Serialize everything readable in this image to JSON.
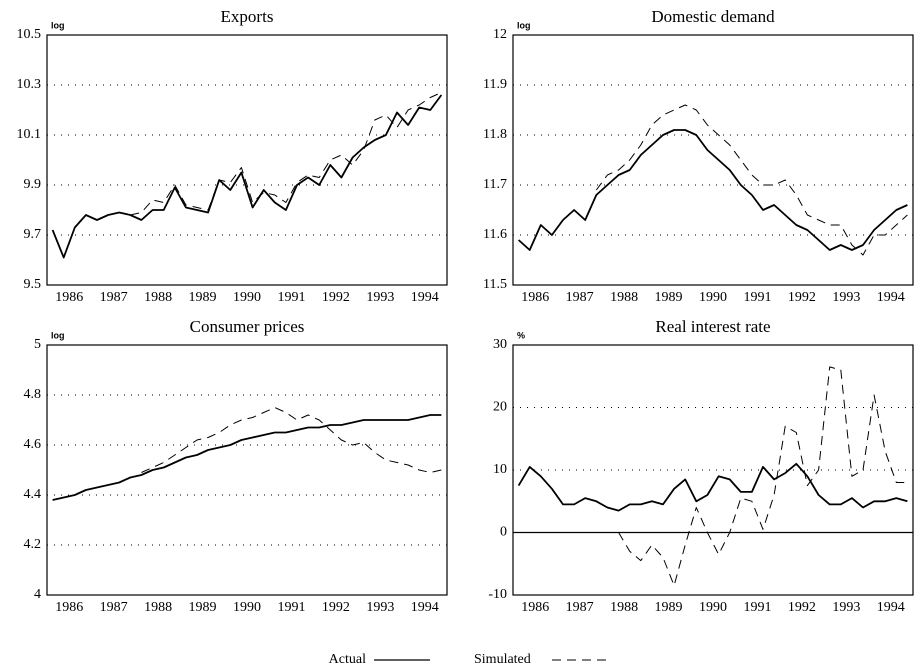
{
  "chart_data": [
    {
      "type": "line",
      "title": "Exports",
      "y_unit": "log",
      "categories": [
        "1986",
        null,
        null,
        null,
        "1987",
        null,
        null,
        null,
        "1988",
        null,
        null,
        null,
        "1989",
        null,
        null,
        null,
        "1990",
        null,
        null,
        null,
        "1991",
        null,
        null,
        null,
        "1992",
        null,
        null,
        null,
        "1993",
        null,
        null,
        null,
        "1994",
        null,
        null,
        null
      ],
      "series": [
        {
          "name": "Actual",
          "color": "#000000",
          "style": "solid",
          "values": [
            9.72,
            9.61,
            9.73,
            9.78,
            9.76,
            9.78,
            9.79,
            9.78,
            9.76,
            9.8,
            9.8,
            9.89,
            9.81,
            9.8,
            9.79,
            9.92,
            9.88,
            9.95,
            9.81,
            9.88,
            9.83,
            9.8,
            9.9,
            9.93,
            9.9,
            9.98,
            9.93,
            10.01,
            10.05,
            10.08,
            10.1,
            10.19,
            10.14,
            10.21,
            10.2,
            10.26
          ]
        },
        {
          "name": "Simulated",
          "color": "#000000",
          "style": "dashed",
          "values": [
            null,
            null,
            null,
            null,
            null,
            null,
            null,
            9.78,
            9.79,
            9.84,
            9.83,
            9.9,
            9.82,
            9.81,
            9.8,
            9.92,
            9.91,
            9.97,
            9.83,
            9.87,
            9.86,
            9.83,
            9.91,
            9.94,
            9.93,
            10.0,
            10.02,
            9.98,
            10.04,
            10.16,
            10.18,
            10.13,
            10.2,
            10.22,
            10.25,
            10.27
          ]
        }
      ],
      "ylim": [
        9.5,
        10.5
      ],
      "yticks": [
        9.5,
        9.7,
        9.9,
        10.1,
        10.3,
        10.5
      ],
      "grid": true
    },
    {
      "type": "line",
      "title": "Domestic demand",
      "y_unit": "log",
      "categories": [
        "1986",
        null,
        null,
        null,
        "1987",
        null,
        null,
        null,
        "1988",
        null,
        null,
        null,
        "1989",
        null,
        null,
        null,
        "1990",
        null,
        null,
        null,
        "1991",
        null,
        null,
        null,
        "1992",
        null,
        null,
        null,
        "1993",
        null,
        null,
        null,
        "1994",
        null,
        null,
        null
      ],
      "series": [
        {
          "name": "Actual",
          "color": "#000000",
          "style": "solid",
          "values": [
            11.59,
            11.57,
            11.62,
            11.6,
            11.63,
            11.65,
            11.63,
            11.68,
            11.7,
            11.72,
            11.73,
            11.76,
            11.78,
            11.8,
            11.81,
            11.81,
            11.8,
            11.77,
            11.75,
            11.73,
            11.7,
            11.68,
            11.65,
            11.66,
            11.64,
            11.62,
            11.61,
            11.59,
            11.57,
            11.58,
            11.57,
            11.58,
            11.61,
            11.63,
            11.65,
            11.66
          ]
        },
        {
          "name": "Simulated",
          "color": "#000000",
          "style": "dashed",
          "values": [
            null,
            null,
            null,
            null,
            null,
            null,
            null,
            11.69,
            11.72,
            11.73,
            11.75,
            11.78,
            11.82,
            11.84,
            11.85,
            11.86,
            11.85,
            11.82,
            11.8,
            11.78,
            11.75,
            11.72,
            11.7,
            11.7,
            11.71,
            11.68,
            11.64,
            11.63,
            11.62,
            11.62,
            11.58,
            11.56,
            11.6,
            11.6,
            11.62,
            11.64
          ]
        }
      ],
      "ylim": [
        11.5,
        12
      ],
      "yticks": [
        11.5,
        11.6,
        11.7,
        11.8,
        11.9,
        12
      ],
      "grid": true
    },
    {
      "type": "line",
      "title": "Consumer prices",
      "y_unit": "log",
      "categories": [
        "1986",
        null,
        null,
        null,
        "1987",
        null,
        null,
        null,
        "1988",
        null,
        null,
        null,
        "1989",
        null,
        null,
        null,
        "1990",
        null,
        null,
        null,
        "1991",
        null,
        null,
        null,
        "1992",
        null,
        null,
        null,
        "1993",
        null,
        null,
        null,
        "1994",
        null,
        null,
        null
      ],
      "series": [
        {
          "name": "Actual",
          "color": "#000000",
          "style": "solid",
          "values": [
            4.38,
            4.39,
            4.4,
            4.42,
            4.43,
            4.44,
            4.45,
            4.47,
            4.48,
            4.5,
            4.51,
            4.53,
            4.55,
            4.56,
            4.58,
            4.59,
            4.6,
            4.62,
            4.63,
            4.64,
            4.65,
            4.65,
            4.66,
            4.67,
            4.67,
            4.68,
            4.68,
            4.69,
            4.7,
            4.7,
            4.7,
            4.7,
            4.7,
            4.71,
            4.72,
            4.72
          ]
        },
        {
          "name": "Simulated",
          "color": "#000000",
          "style": "dashed",
          "values": [
            null,
            null,
            null,
            null,
            null,
            null,
            null,
            null,
            4.49,
            4.51,
            4.53,
            4.56,
            4.59,
            4.62,
            4.63,
            4.65,
            4.68,
            4.7,
            4.71,
            4.73,
            4.75,
            4.73,
            4.7,
            4.72,
            4.7,
            4.66,
            4.62,
            4.6,
            4.61,
            4.57,
            4.54,
            4.53,
            4.52,
            4.5,
            4.49,
            4.5
          ]
        }
      ],
      "ylim": [
        4,
        5
      ],
      "yticks": [
        4,
        4.2,
        4.4,
        4.6,
        4.8,
        5
      ],
      "grid": true
    },
    {
      "type": "line",
      "title": "Real interest rate",
      "y_unit": "%",
      "categories": [
        "1986",
        null,
        null,
        null,
        "1987",
        null,
        null,
        null,
        "1988",
        null,
        null,
        null,
        "1989",
        null,
        null,
        null,
        "1990",
        null,
        null,
        null,
        "1991",
        null,
        null,
        null,
        "1992",
        null,
        null,
        null,
        "1993",
        null,
        null,
        null,
        "1994",
        null,
        null,
        null
      ],
      "series": [
        {
          "name": "Actual",
          "color": "#000000",
          "style": "solid",
          "values": [
            7.5,
            10.5,
            9,
            7,
            4.5,
            4.5,
            5.5,
            5,
            4,
            3.5,
            4.5,
            4.5,
            5,
            4.5,
            7,
            8.5,
            5,
            6,
            9,
            8.5,
            6.5,
            6.5,
            10.5,
            8.5,
            9.5,
            11,
            9,
            6,
            4.5,
            4.5,
            5.5,
            4,
            5,
            5,
            5.5,
            5
          ]
        },
        {
          "name": "Simulated",
          "color": "#000000",
          "style": "dashed",
          "values": [
            null,
            null,
            null,
            null,
            null,
            null,
            null,
            null,
            null,
            0,
            -3,
            -4.5,
            -2,
            -4,
            -8.5,
            -2,
            4,
            0,
            -3.5,
            0,
            5.5,
            5,
            0.5,
            6,
            17,
            16,
            7.5,
            10,
            26.5,
            26,
            9,
            10,
            22,
            13,
            8,
            8
          ]
        }
      ],
      "ylim": [
        -10,
        30
      ],
      "yticks": [
        -10,
        0,
        10,
        20,
        30
      ],
      "grid": true,
      "zero_line": true
    }
  ]
}
